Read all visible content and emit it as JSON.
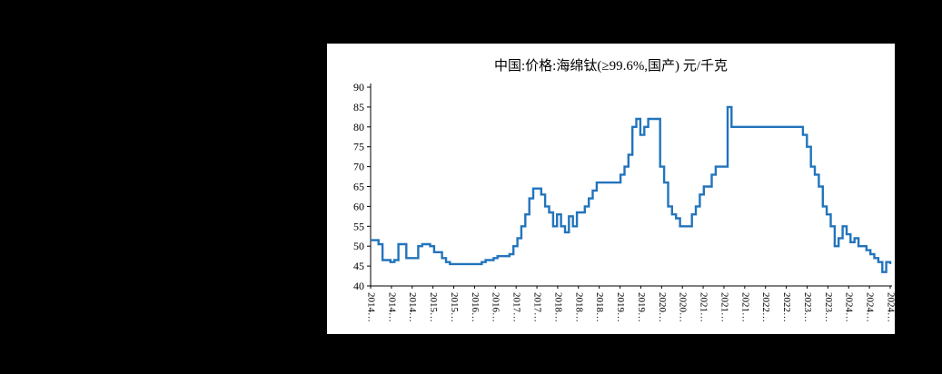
{
  "chart_data": {
    "type": "line",
    "title": "中国:价格:海绵钛(≥99.6%,国产) 元/千克",
    "ylabel": "",
    "xlabel": "",
    "unit": "元/千克",
    "line_color": "#2274BC",
    "axis_color": "#000000",
    "background_color": "#ffffff",
    "page_background": "#000000",
    "legend": "none",
    "grid": false,
    "step_line": true,
    "ylim": [
      40,
      90
    ],
    "y_ticks": [
      90,
      85,
      80,
      75,
      70,
      65,
      60,
      55,
      50,
      45,
      40
    ],
    "x_tick_labels": [
      "2014…",
      "2014…",
      "2014…",
      "2015…",
      "2015…",
      "2016…",
      "2016…",
      "2017…",
      "2017…",
      "2018…",
      "2018…",
      "2018…",
      "2019…",
      "2019…",
      "2020…",
      "2020…",
      "2021…",
      "2021…",
      "2021…",
      "2022…",
      "2022…",
      "2023…",
      "2023…",
      "2024…",
      "2024…",
      "2024…"
    ],
    "x_range_note": "monthly values 2014-01 to 2024-12",
    "values": [
      51.5,
      51.5,
      50.5,
      46.5,
      46.5,
      46,
      46.5,
      50.5,
      50.5,
      47,
      47,
      47,
      50,
      50.5,
      50.5,
      50,
      48.5,
      48.5,
      47,
      46,
      45.5,
      45.5,
      45.5,
      45.5,
      45.5,
      45.5,
      45.5,
      45.5,
      46,
      46.5,
      46.5,
      47,
      47.5,
      47.5,
      47.5,
      48,
      50,
      52,
      55,
      58,
      62,
      64.5,
      64.5,
      63,
      60,
      58.5,
      55,
      58,
      55,
      53.5,
      57.5,
      55,
      58.5,
      58.5,
      60,
      62,
      64,
      66,
      66,
      66,
      66,
      66,
      66,
      68,
      70,
      73,
      80,
      82,
      78,
      80,
      82,
      82,
      82,
      70,
      66,
      60,
      58,
      57,
      55,
      55,
      55,
      58,
      60,
      63,
      65,
      65,
      68,
      70,
      70,
      70,
      85,
      80,
      80,
      80,
      80,
      80,
      80,
      80,
      80,
      80,
      80,
      80,
      80,
      80,
      80,
      80,
      80,
      80,
      80,
      78,
      75,
      70,
      68,
      65,
      60,
      58,
      55,
      50,
      52,
      55,
      53,
      51,
      52,
      50,
      50,
      49,
      48,
      47,
      46,
      43.5,
      46,
      45.5
    ]
  }
}
